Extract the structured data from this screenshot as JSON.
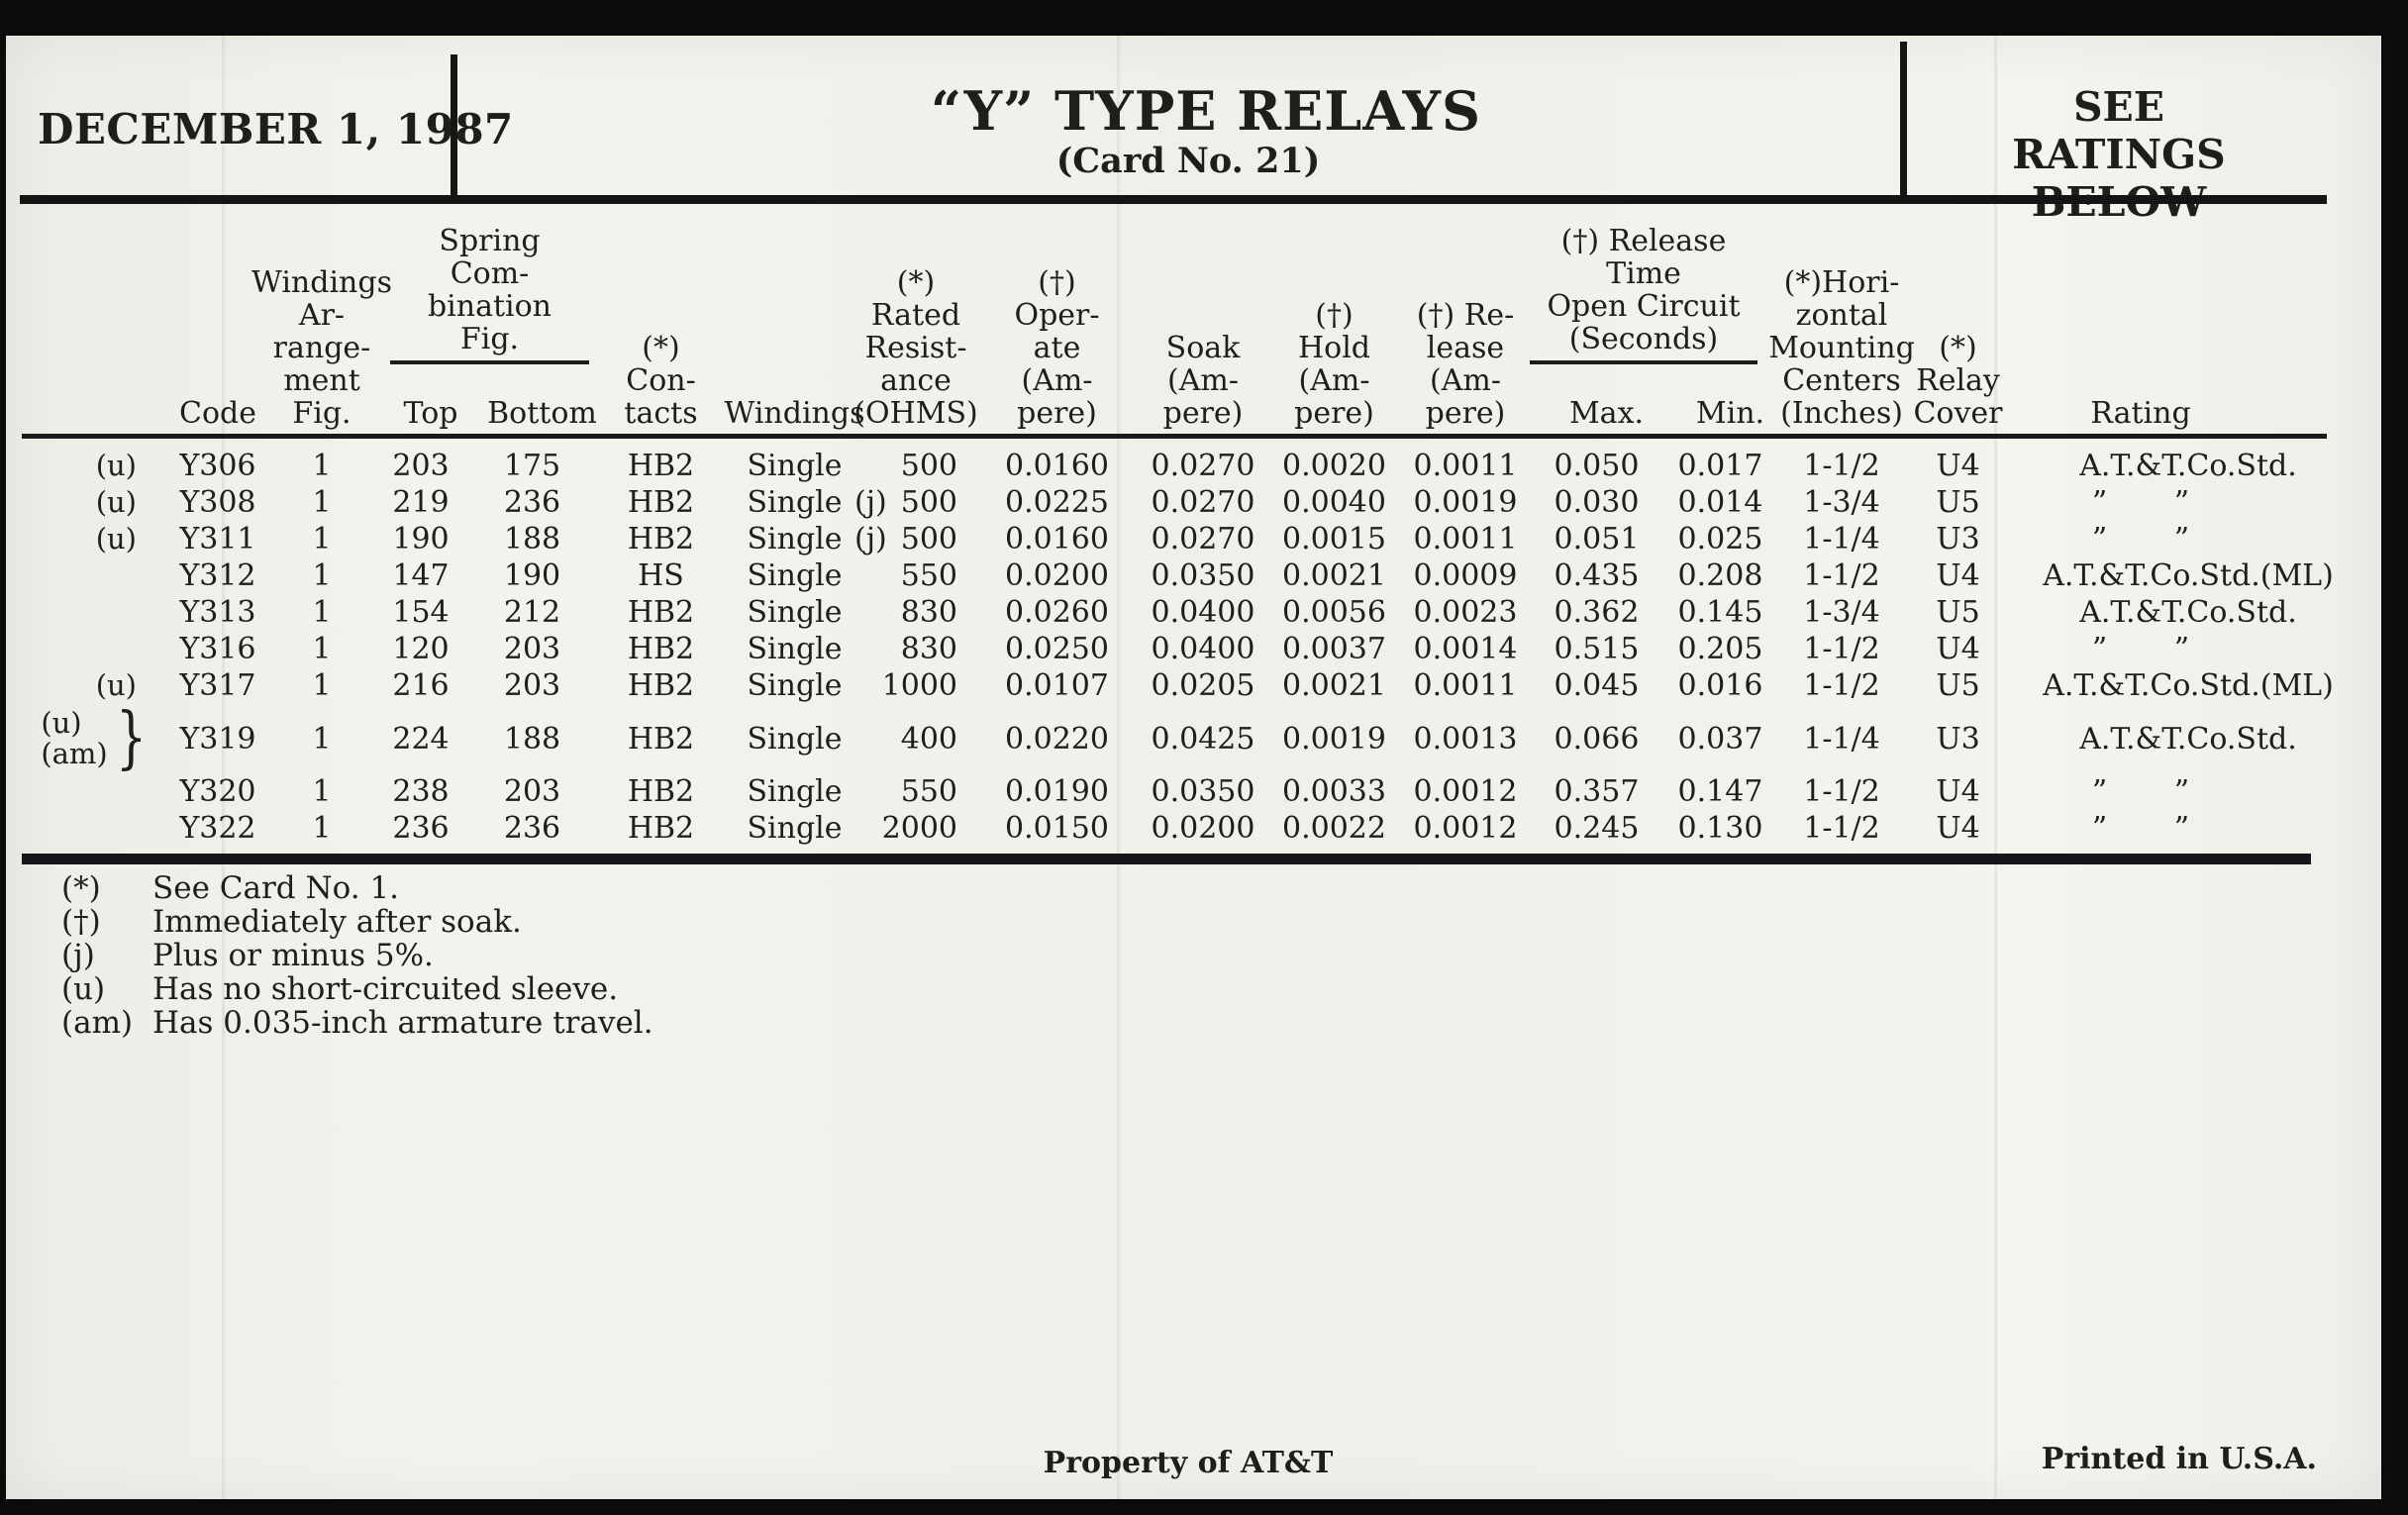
{
  "colors": {
    "paper": "#f2f1eb",
    "ink": "#201e1a",
    "background": "#0b0b0b"
  },
  "header": {
    "date": "DECEMBER 1, 1987",
    "title": "“Y” TYPE RELAYS",
    "card_no": "(Card No. 21)",
    "ratings_note": "SEE RATINGS\nBELOW"
  },
  "table": {
    "columns": {
      "code": "Code",
      "windings_fig": "Windings\nAr-\nrange-\nment\nFig.",
      "spring_group": "Spring\nCom-\nbination\nFig.",
      "spring_top": "Top",
      "spring_bottom": "Bottom",
      "contacts": "(*)\nCon-\ntacts",
      "windings": "Windings",
      "resistance": "(*)\nRated\nResist-\nance\n(OHMS)",
      "operate": "(†)\nOper-\nate\n(Am-\npere)",
      "soak": "Soak\n(Am-\npere)",
      "hold": "(†)\nHold\n(Am-\npere)",
      "release": "(†) Re-\nlease\n(Am-\npere)",
      "release_time_group": "(†) Release\nTime\nOpen Circuit\n(Seconds)",
      "max": "Max.",
      "min": "Min.",
      "mounting": "(*)Hori-\nzontal\nMounting\nCenters\n(Inches)",
      "cover": "(*)\nRelay\nCover",
      "rating": "Rating"
    },
    "rows": [
      {
        "prefix": "(u)",
        "brace": "",
        "code": "Y306",
        "fig": "1",
        "top": "203",
        "bottom": "175",
        "contacts": "HB2",
        "windings": "Single",
        "j": "",
        "resistance": "500",
        "operate": "0.0160",
        "soak": "0.0270",
        "hold": "0.0020",
        "release": "0.0011",
        "max": "0.050",
        "min": "0.017",
        "centers": "1-1/2",
        "cover": "U4",
        "rating": "A.T.&T.Co.Std."
      },
      {
        "prefix": "(u)",
        "brace": "",
        "code": "Y308",
        "fig": "1",
        "top": "219",
        "bottom": "236",
        "contacts": "HB2",
        "windings": "Single",
        "j": "(j)",
        "resistance": "500",
        "operate": "0.0225",
        "soak": "0.0270",
        "hold": "0.0040",
        "release": "0.0019",
        "max": "0.030",
        "min": "0.014",
        "centers": "1-3/4",
        "cover": "U5",
        "rating": "” ”"
      },
      {
        "prefix": "(u)",
        "brace": "",
        "code": "Y311",
        "fig": "1",
        "top": "190",
        "bottom": "188",
        "contacts": "HB2",
        "windings": "Single",
        "j": "(j)",
        "resistance": "500",
        "operate": "0.0160",
        "soak": "0.0270",
        "hold": "0.0015",
        "release": "0.0011",
        "max": "0.051",
        "min": "0.025",
        "centers": "1-1/4",
        "cover": "U3",
        "rating": "” ”"
      },
      {
        "prefix": "",
        "brace": "",
        "code": "Y312",
        "fig": "1",
        "top": "147",
        "bottom": "190",
        "contacts": "HS",
        "windings": "Single",
        "j": "",
        "resistance": "550",
        "operate": "0.0200",
        "soak": "0.0350",
        "hold": "0.0021",
        "release": "0.0009",
        "max": "0.435",
        "min": "0.208",
        "centers": "1-1/2",
        "cover": "U4",
        "rating": "A.T.&T.Co.Std.(ML)"
      },
      {
        "prefix": "",
        "brace": "",
        "code": "Y313",
        "fig": "1",
        "top": "154",
        "bottom": "212",
        "contacts": "HB2",
        "windings": "Single",
        "j": "",
        "resistance": "830",
        "operate": "0.0260",
        "soak": "0.0400",
        "hold": "0.0056",
        "release": "0.0023",
        "max": "0.362",
        "min": "0.145",
        "centers": "1-3/4",
        "cover": "U5",
        "rating": "A.T.&T.Co.Std."
      },
      {
        "prefix": "",
        "brace": "",
        "code": "Y316",
        "fig": "1",
        "top": "120",
        "bottom": "203",
        "contacts": "HB2",
        "windings": "Single",
        "j": "",
        "resistance": "830",
        "operate": "0.0250",
        "soak": "0.0400",
        "hold": "0.0037",
        "release": "0.0014",
        "max": "0.515",
        "min": "0.205",
        "centers": "1-1/2",
        "cover": "U4",
        "rating": "” ”"
      },
      {
        "prefix": "(u)",
        "brace": "",
        "code": "Y317",
        "fig": "1",
        "top": "216",
        "bottom": "203",
        "contacts": "HB2",
        "windings": "Single",
        "j": "",
        "resistance": "1000",
        "operate": "0.0107",
        "soak": "0.0205",
        "hold": "0.0021",
        "release": "0.0011",
        "max": "0.045",
        "min": "0.016",
        "centers": "1-1/2",
        "cover": "U5",
        "rating": "A.T.&T.Co.Std.(ML)"
      },
      {
        "prefix": "(u)\n(am)",
        "brace": "}",
        "code": "Y319",
        "fig": "1",
        "top": "224",
        "bottom": "188",
        "contacts": "HB2",
        "windings": "Single",
        "j": "",
        "resistance": "400",
        "operate": "0.0220",
        "soak": "0.0425",
        "hold": "0.0019",
        "release": "0.0013",
        "max": "0.066",
        "min": "0.037",
        "centers": "1-1/4",
        "cover": "U3",
        "rating": "A.T.&T.Co.Std."
      },
      {
        "prefix": "",
        "brace": "",
        "code": "Y320",
        "fig": "1",
        "top": "238",
        "bottom": "203",
        "contacts": "HB2",
        "windings": "Single",
        "j": "",
        "resistance": "550",
        "operate": "0.0190",
        "soak": "0.0350",
        "hold": "0.0033",
        "release": "0.0012",
        "max": "0.357",
        "min": "0.147",
        "centers": "1-1/2",
        "cover": "U4",
        "rating": "” ”"
      },
      {
        "prefix": "",
        "brace": "",
        "code": "Y322",
        "fig": "1",
        "top": "236",
        "bottom": "236",
        "contacts": "HB2",
        "windings": "Single",
        "j": "",
        "resistance": "2000",
        "operate": "0.0150",
        "soak": "0.0200",
        "hold": "0.0022",
        "release": "0.0012",
        "max": "0.245",
        "min": "0.130",
        "centers": "1-1/2",
        "cover": "U4",
        "rating": "” ”"
      }
    ]
  },
  "footnotes": [
    {
      "symbol": "(*)",
      "text": "See Card No. 1."
    },
    {
      "symbol": "(†)",
      "text": "Immediately after soak."
    },
    {
      "symbol": "(j)",
      "text": "Plus or minus 5%."
    },
    {
      "symbol": "(u)",
      "text": "Has no short-circuited sleeve."
    },
    {
      "symbol": "(am)",
      "text": "Has 0.035-inch armature travel."
    }
  ],
  "footer": {
    "center": "Property of AT&T",
    "right": "Printed in U.S.A."
  }
}
